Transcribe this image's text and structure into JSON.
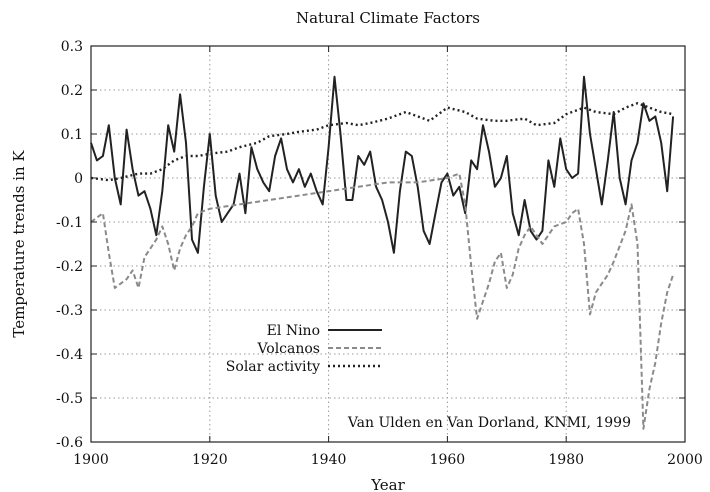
{
  "chart_data": {
    "type": "line",
    "title": "Natural Climate Factors",
    "xlabel": "Year",
    "ylabel": "Temperature trends in K",
    "xlim": [
      1900,
      2000
    ],
    "ylim": [
      -0.6,
      0.3
    ],
    "x_ticks": [
      "1900",
      "1920",
      "1940",
      "1960",
      "1980",
      "2000"
    ],
    "y_ticks": [
      "0.3",
      "0.2",
      "0.1",
      "0",
      "-0.1",
      "-0.2",
      "-0.3",
      "-0.4",
      "-0.5",
      "-0.6"
    ],
    "grid": true,
    "legend_position": "lower-left",
    "annotation": "Van Ulden en Van Dorland, KNMI, 1999",
    "series": [
      {
        "name": "El Nino",
        "color": "#222222",
        "style": "solid",
        "x": [
          1900,
          1901,
          1902,
          1903,
          1904,
          1905,
          1906,
          1907,
          1908,
          1909,
          1910,
          1911,
          1912,
          1913,
          1914,
          1915,
          1916,
          1917,
          1918,
          1919,
          1920,
          1921,
          1922,
          1923,
          1924,
          1925,
          1926,
          1927,
          1928,
          1929,
          1930,
          1931,
          1932,
          1933,
          1934,
          1935,
          1936,
          1937,
          1938,
          1939,
          1940,
          1941,
          1942,
          1943,
          1944,
          1945,
          1946,
          1947,
          1948,
          1949,
          1950,
          1951,
          1952,
          1953,
          1954,
          1955,
          1956,
          1957,
          1958,
          1959,
          1960,
          1961,
          1962,
          1963,
          1964,
          1965,
          1966,
          1967,
          1968,
          1969,
          1970,
          1971,
          1972,
          1973,
          1974,
          1975,
          1976,
          1977,
          1978,
          1979,
          1980,
          1981,
          1982,
          1983,
          1984,
          1985,
          1986,
          1987,
          1988,
          1989,
          1990,
          1991,
          1992,
          1993,
          1994,
          1995,
          1996,
          1997,
          1998
        ],
        "y": [
          0.08,
          0.04,
          0.05,
          0.12,
          0.0,
          -0.06,
          0.11,
          0.02,
          -0.04,
          -0.03,
          -0.07,
          -0.13,
          -0.03,
          0.12,
          0.06,
          0.19,
          0.08,
          -0.14,
          -0.17,
          -0.02,
          0.1,
          -0.04,
          -0.1,
          -0.08,
          -0.06,
          0.01,
          -0.08,
          0.07,
          0.02,
          -0.01,
          -0.03,
          0.05,
          0.09,
          0.02,
          -0.01,
          0.02,
          -0.02,
          0.01,
          -0.03,
          -0.06,
          0.07,
          0.23,
          0.1,
          -0.05,
          -0.05,
          0.05,
          0.03,
          0.06,
          -0.02,
          -0.05,
          -0.1,
          -0.17,
          -0.03,
          0.06,
          0.05,
          -0.02,
          -0.12,
          -0.15,
          -0.08,
          -0.01,
          0.01,
          -0.04,
          -0.02,
          -0.08,
          0.04,
          0.02,
          0.12,
          0.06,
          -0.02,
          0.0,
          0.05,
          -0.08,
          -0.13,
          -0.05,
          -0.12,
          -0.14,
          -0.12,
          0.04,
          -0.02,
          0.09,
          0.02,
          0.0,
          0.01,
          0.23,
          0.1,
          0.02,
          -0.06,
          0.04,
          0.15,
          0.0,
          -0.06,
          0.04,
          0.08,
          0.17,
          0.13,
          0.14,
          0.08,
          -0.03,
          0.14
        ]
      },
      {
        "name": "Volcanos",
        "color": "#8a8a8a",
        "style": "dashed",
        "x": [
          1900,
          1901,
          1902,
          1903,
          1904,
          1905,
          1906,
          1907,
          1908,
          1909,
          1910,
          1911,
          1912,
          1913,
          1914,
          1915,
          1916,
          1917,
          1918,
          1920,
          1925,
          1930,
          1935,
          1940,
          1945,
          1950,
          1955,
          1960,
          1962,
          1963,
          1964,
          1965,
          1966,
          1967,
          1968,
          1969,
          1970,
          1971,
          1972,
          1973,
          1974,
          1975,
          1976,
          1978,
          1980,
          1981,
          1982,
          1983,
          1984,
          1985,
          1986,
          1987,
          1988,
          1990,
          1991,
          1992,
          1993,
          1994,
          1995,
          1996,
          1997,
          1998
        ],
        "y": [
          -0.1,
          -0.09,
          -0.08,
          -0.17,
          -0.25,
          -0.24,
          -0.23,
          -0.21,
          -0.25,
          -0.18,
          -0.16,
          -0.14,
          -0.11,
          -0.15,
          -0.21,
          -0.16,
          -0.13,
          -0.11,
          -0.08,
          -0.07,
          -0.06,
          -0.05,
          -0.04,
          -0.03,
          -0.02,
          -0.01,
          -0.01,
          0.0,
          0.01,
          -0.06,
          -0.2,
          -0.32,
          -0.28,
          -0.24,
          -0.19,
          -0.17,
          -0.25,
          -0.22,
          -0.16,
          -0.13,
          -0.11,
          -0.13,
          -0.15,
          -0.11,
          -0.1,
          -0.08,
          -0.07,
          -0.15,
          -0.31,
          -0.26,
          -0.24,
          -0.22,
          -0.19,
          -0.12,
          -0.06,
          -0.15,
          -0.57,
          -0.48,
          -0.42,
          -0.33,
          -0.26,
          -0.22
        ]
      },
      {
        "name": "Solar activity",
        "color": "#222222",
        "style": "dotted",
        "x": [
          1900,
          1903,
          1905,
          1908,
          1910,
          1912,
          1914,
          1916,
          1918,
          1920,
          1923,
          1925,
          1928,
          1930,
          1933,
          1935,
          1938,
          1940,
          1943,
          1945,
          1947,
          1950,
          1953,
          1955,
          1957,
          1960,
          1963,
          1965,
          1968,
          1970,
          1973,
          1975,
          1978,
          1980,
          1983,
          1985,
          1988,
          1990,
          1992,
          1994,
          1996,
          1998
        ],
        "y": [
          0.0,
          -0.005,
          0.0,
          0.01,
          0.01,
          0.02,
          0.04,
          0.05,
          0.05,
          0.055,
          0.06,
          0.07,
          0.08,
          0.095,
          0.1,
          0.105,
          0.11,
          0.12,
          0.125,
          0.12,
          0.125,
          0.135,
          0.15,
          0.14,
          0.13,
          0.16,
          0.15,
          0.135,
          0.13,
          0.13,
          0.135,
          0.12,
          0.125,
          0.145,
          0.16,
          0.15,
          0.145,
          0.16,
          0.17,
          0.16,
          0.15,
          0.145
        ]
      }
    ]
  }
}
